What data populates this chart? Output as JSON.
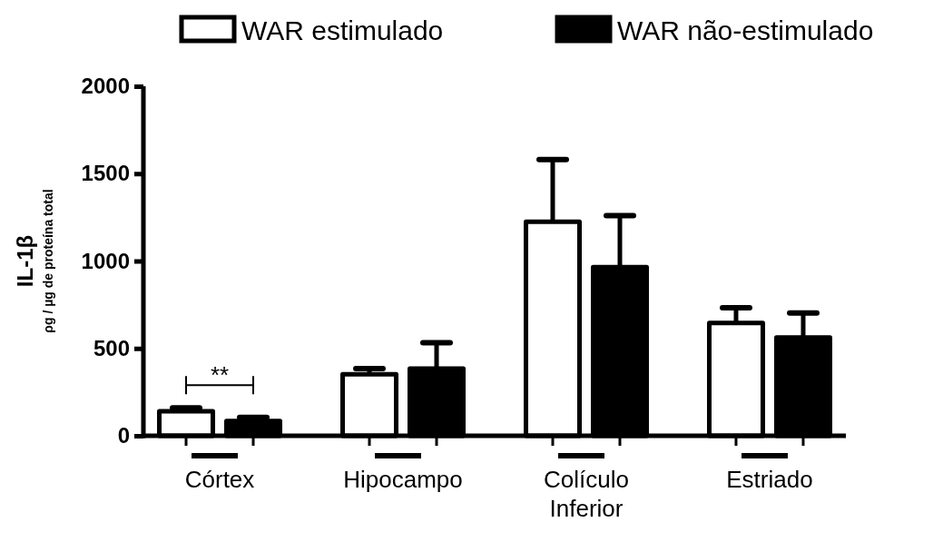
{
  "chart_data": {
    "type": "bar",
    "ylabel": "IL-1β$_{ρg / µg de proteína total}$",
    "categories": [
      "Córtex",
      "Hipocampo",
      "Colículo Inferior",
      "Estriado"
    ],
    "series": [
      {
        "name": "WAR estimulado",
        "color": "#ffffff",
        "values": [
          140,
          352,
          1225,
          645
        ],
        "errors": [
          20,
          32,
          355,
          88
        ]
      },
      {
        "name": "WAR não-estimulado",
        "color": "#000000",
        "values": [
          85,
          385,
          965,
          562
        ],
        "errors": [
          20,
          148,
          295,
          140
        ]
      }
    ],
    "ylim": [
      0,
      2000
    ],
    "yticks": [
      0,
      500,
      1000,
      1500,
      2000
    ],
    "grid": false,
    "legend": "top",
    "annotations": [
      "**"
    ]
  }
}
